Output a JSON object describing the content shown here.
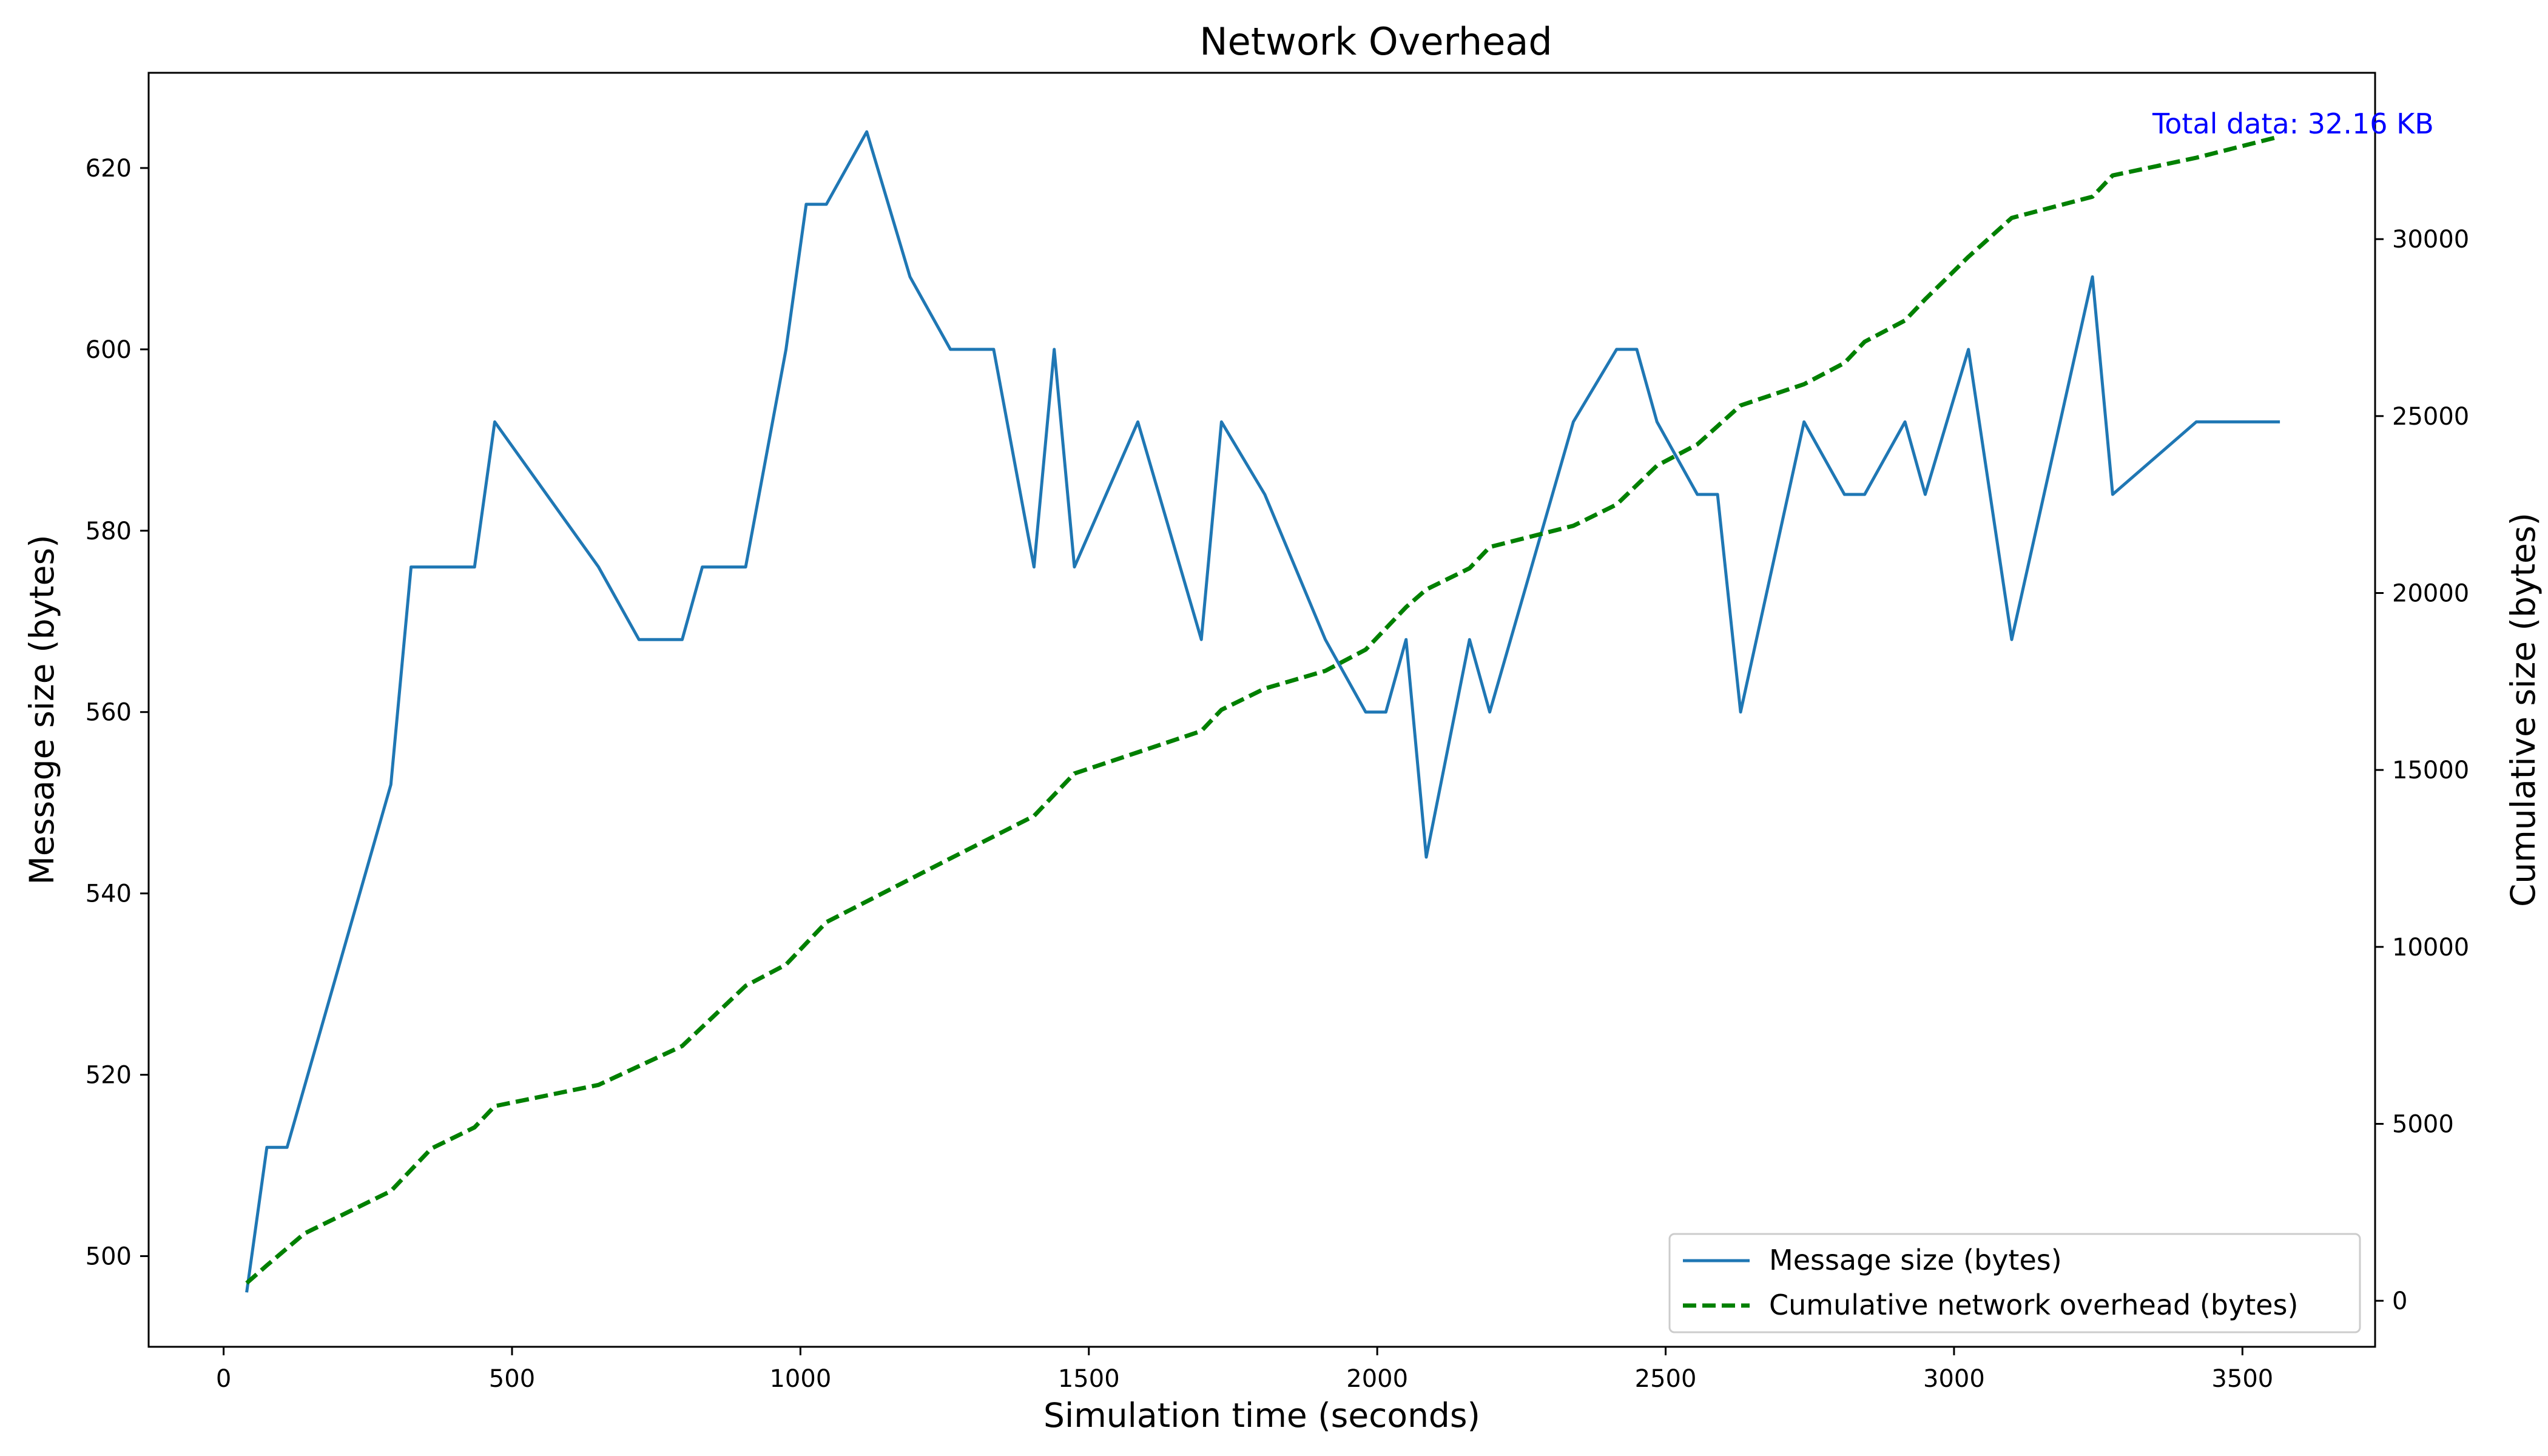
{
  "chart_data": {
    "type": "line",
    "title": "Network Overhead",
    "xlabel": "Simulation time (seconds)",
    "ylabel_left": "Message size (bytes)",
    "ylabel_right": "Cumulative size (bytes)",
    "xlim": [
      -130,
      3730
    ],
    "ylim_left": [
      490,
      630.5
    ],
    "ylim_right": [
      -1300,
      34700
    ],
    "xticks": [
      0,
      500,
      1000,
      1500,
      2000,
      2500,
      3000,
      3500
    ],
    "yticks_left": [
      500,
      520,
      540,
      560,
      580,
      600,
      620
    ],
    "yticks_right": [
      0,
      5000,
      10000,
      15000,
      20000,
      25000,
      30000
    ],
    "grid": false,
    "legend_position": "lower-right",
    "annotation": {
      "text": "Total data: 32.16 KB",
      "color": "#0000ff"
    },
    "series": [
      {
        "name": "Message size (bytes)",
        "axis": "left",
        "color": "#1f77b4",
        "style": "solid",
        "points": [
          [
            40,
            496
          ],
          [
            75,
            512
          ],
          [
            110,
            512
          ],
          [
            290,
            552
          ],
          [
            325,
            576
          ],
          [
            435,
            576
          ],
          [
            470,
            592
          ],
          [
            650,
            576
          ],
          [
            720,
            568
          ],
          [
            795,
            568
          ],
          [
            830,
            576
          ],
          [
            905,
            576
          ],
          [
            975,
            600
          ],
          [
            1010,
            616
          ],
          [
            1045,
            616
          ],
          [
            1115,
            624
          ],
          [
            1190,
            608
          ],
          [
            1260,
            600
          ],
          [
            1335,
            600
          ],
          [
            1405,
            576
          ],
          [
            1440,
            600
          ],
          [
            1475,
            576
          ],
          [
            1585,
            592
          ],
          [
            1695,
            568
          ],
          [
            1730,
            592
          ],
          [
            1805,
            584
          ],
          [
            1910,
            568
          ],
          [
            1980,
            560
          ],
          [
            2015,
            560
          ],
          [
            2050,
            568
          ],
          [
            2085,
            544
          ],
          [
            2160,
            568
          ],
          [
            2195,
            560
          ],
          [
            2340,
            592
          ],
          [
            2415,
            600
          ],
          [
            2450,
            600
          ],
          [
            2485,
            592
          ],
          [
            2555,
            584
          ],
          [
            2590,
            584
          ],
          [
            2630,
            560
          ],
          [
            2740,
            592
          ],
          [
            2810,
            584
          ],
          [
            2845,
            584
          ],
          [
            2915,
            592
          ],
          [
            2950,
            584
          ],
          [
            3025,
            600
          ],
          [
            3100,
            568
          ],
          [
            3240,
            608
          ],
          [
            3275,
            584
          ],
          [
            3420,
            592
          ],
          [
            3565,
            592
          ]
        ]
      },
      {
        "name": "Cumulative network overhead (bytes)",
        "axis": "right",
        "color": "#008000",
        "style": "dashed",
        "points": [
          [
            40,
            500
          ],
          [
            75,
            1000
          ],
          [
            140,
            1900
          ],
          [
            290,
            3100
          ],
          [
            360,
            4300
          ],
          [
            435,
            4900
          ],
          [
            470,
            5500
          ],
          [
            650,
            6100
          ],
          [
            795,
            7200
          ],
          [
            905,
            8900
          ],
          [
            975,
            9500
          ],
          [
            1045,
            10700
          ],
          [
            1260,
            12500
          ],
          [
            1405,
            13700
          ],
          [
            1475,
            14900
          ],
          [
            1585,
            15500
          ],
          [
            1695,
            16100
          ],
          [
            1730,
            16700
          ],
          [
            1805,
            17300
          ],
          [
            1910,
            17800
          ],
          [
            1980,
            18400
          ],
          [
            2050,
            19600
          ],
          [
            2085,
            20100
          ],
          [
            2160,
            20700
          ],
          [
            2195,
            21300
          ],
          [
            2340,
            21900
          ],
          [
            2415,
            22500
          ],
          [
            2485,
            23600
          ],
          [
            2555,
            24200
          ],
          [
            2630,
            25300
          ],
          [
            2740,
            25900
          ],
          [
            2810,
            26500
          ],
          [
            2845,
            27100
          ],
          [
            2915,
            27700
          ],
          [
            2950,
            28300
          ],
          [
            3025,
            29500
          ],
          [
            3100,
            30600
          ],
          [
            3240,
            31200
          ],
          [
            3275,
            31800
          ],
          [
            3420,
            32300
          ],
          [
            3565,
            32900
          ]
        ]
      }
    ]
  }
}
